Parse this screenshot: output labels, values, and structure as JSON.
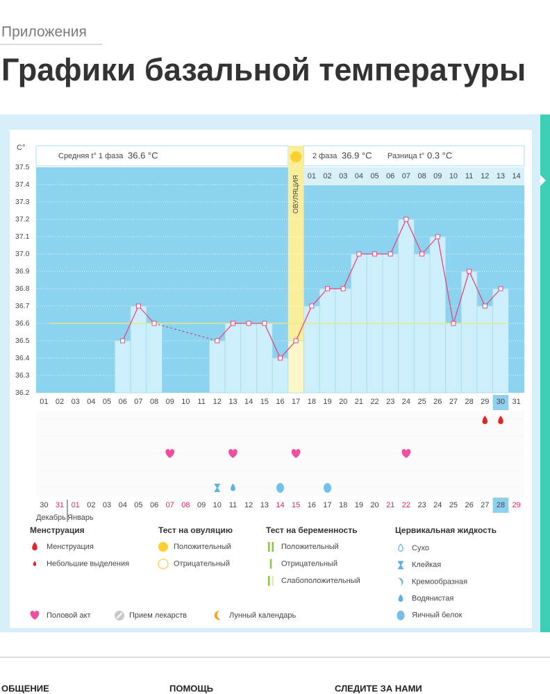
{
  "header": {
    "breadcrumb": "Приложения",
    "title": "Графики базальной температуры"
  },
  "chart_data": {
    "type": "bar",
    "y_unit": "C°",
    "phase1_label": "Средняя t° 1 фаза",
    "phase1_value": "36.6 °C",
    "phase2_label": "2 фаза",
    "phase2_value": "36.9 °C",
    "diff_label": "Разница t°",
    "diff_value": "0.3 °C",
    "ovulation_label": "ОВУЛЯЦИЯ",
    "ovulation_day": "17",
    "ovulation_color": "#fbee9a",
    "categories": [
      "01",
      "02",
      "03",
      "04",
      "05",
      "06",
      "07",
      "08",
      "09",
      "10",
      "11",
      "12",
      "13",
      "14",
      "15",
      "16",
      "17",
      "18",
      "19",
      "20",
      "21",
      "22",
      "23",
      "24",
      "25",
      "26",
      "27",
      "28",
      "29",
      "30",
      "31"
    ],
    "values": [
      null,
      null,
      null,
      null,
      null,
      36.5,
      36.7,
      36.6,
      null,
      null,
      null,
      36.5,
      36.6,
      36.6,
      36.6,
      36.4,
      36.5,
      36.7,
      36.8,
      36.8,
      37.0,
      37.0,
      37.0,
      37.2,
      37.0,
      37.1,
      36.6,
      36.9,
      36.7,
      36.8,
      null
    ],
    "color": "#e8457a",
    "bar_color": "#cdeefb",
    "plot_color": "#8cd3f0",
    "coverline": 36.6,
    "coverline_color": "#e4e88c",
    "phase2_start": "18",
    "phase2_days": [
      "01",
      "02",
      "03",
      "04",
      "05",
      "06",
      "07",
      "08",
      "09",
      "10",
      "11",
      "12",
      "13",
      "14"
    ],
    "highlight_day": "30",
    "ylim": [
      36.2,
      37.5
    ],
    "yticks": [
      36.2,
      36.3,
      36.4,
      36.5,
      36.6,
      36.7,
      36.8,
      36.9,
      {
        "value": 37.0,
        "label": "37.0"
      },
      37.1,
      37.2,
      37.3,
      37.4,
      37.5
    ],
    "grid": true,
    "dates": [
      "30",
      "31",
      "01",
      "02",
      "03",
      "04",
      "05",
      "06",
      "07",
      "08",
      "09",
      "10",
      "11",
      "12",
      "13",
      "14",
      "15",
      "16",
      "17",
      "18",
      "19",
      "20",
      "21",
      "22",
      "23",
      "24",
      "25",
      "26",
      "27",
      "28",
      "29"
    ],
    "date_colors": [
      "#444",
      "#e0245e",
      "#e0245e",
      "#444",
      "#444",
      "#444",
      "#444",
      "#444",
      "#e0245e",
      "#e0245e",
      "#444",
      "#444",
      "#444",
      "#444",
      "#444",
      "#e0245e",
      "#e0245e",
      "#444",
      "#444",
      "#444",
      "#444",
      "#444",
      "#e0245e",
      "#e0245e",
      "#444",
      "#444",
      "#444",
      "#444",
      "#444",
      "#444",
      "#e0245e"
    ],
    "months": [
      "Декабрь",
      "Январь"
    ],
    "icons": [
      {
        "day": "29",
        "type": "drop"
      },
      {
        "day": "30",
        "type": "drop"
      },
      {
        "day": "09",
        "type": "heart"
      },
      {
        "day": "13",
        "type": "heart"
      },
      {
        "day": "17",
        "type": "heart"
      },
      {
        "day": "24",
        "type": "heart"
      },
      {
        "day": "12",
        "type": "hourglass"
      },
      {
        "day": "13",
        "type": "water"
      },
      {
        "day": "16",
        "type": "egg"
      },
      {
        "day": "19",
        "type": "egg"
      }
    ]
  },
  "legend": {
    "groups": [
      {
        "title": "Менструация",
        "items": [
          {
            "label": "Менструация",
            "icon": "drop"
          },
          {
            "label": "Небольшие выделения",
            "icon": "smalldrop"
          }
        ]
      },
      {
        "title": "Тест на овуляцию",
        "items": [
          {
            "label": "Положительный",
            "icon": "sun"
          },
          {
            "label": "Отрицательный",
            "icon": "ring"
          }
        ]
      },
      {
        "title": "Тест на беременность",
        "items": [
          {
            "label": "Положительный",
            "icon": "bars2"
          },
          {
            "label": "Отрицательный",
            "icon": "bar1"
          },
          {
            "label": "Слабоположительный",
            "icon": "barweak"
          }
        ]
      },
      {
        "title": "Цервикальная жидкость",
        "items": [
          {
            "label": "Сухо",
            "icon": "dry"
          },
          {
            "label": "Клейкая",
            "icon": "hourglass"
          },
          {
            "label": "Кремообразная",
            "icon": "cream"
          },
          {
            "label": "Водянистая",
            "icon": "water"
          },
          {
            "label": "Яичный белок",
            "icon": "egg"
          }
        ]
      }
    ],
    "extra": [
      {
        "label": "Половой акт",
        "icon": "heart"
      },
      {
        "label": "Прием лекарств",
        "icon": "pill"
      },
      {
        "label": "Лунный календарь",
        "icon": "moon"
      }
    ]
  },
  "footer": [
    "ОБЩЕНИЕ",
    "ПОМОЩЬ",
    "СЛЕДИТЕ ЗА НАМИ"
  ]
}
